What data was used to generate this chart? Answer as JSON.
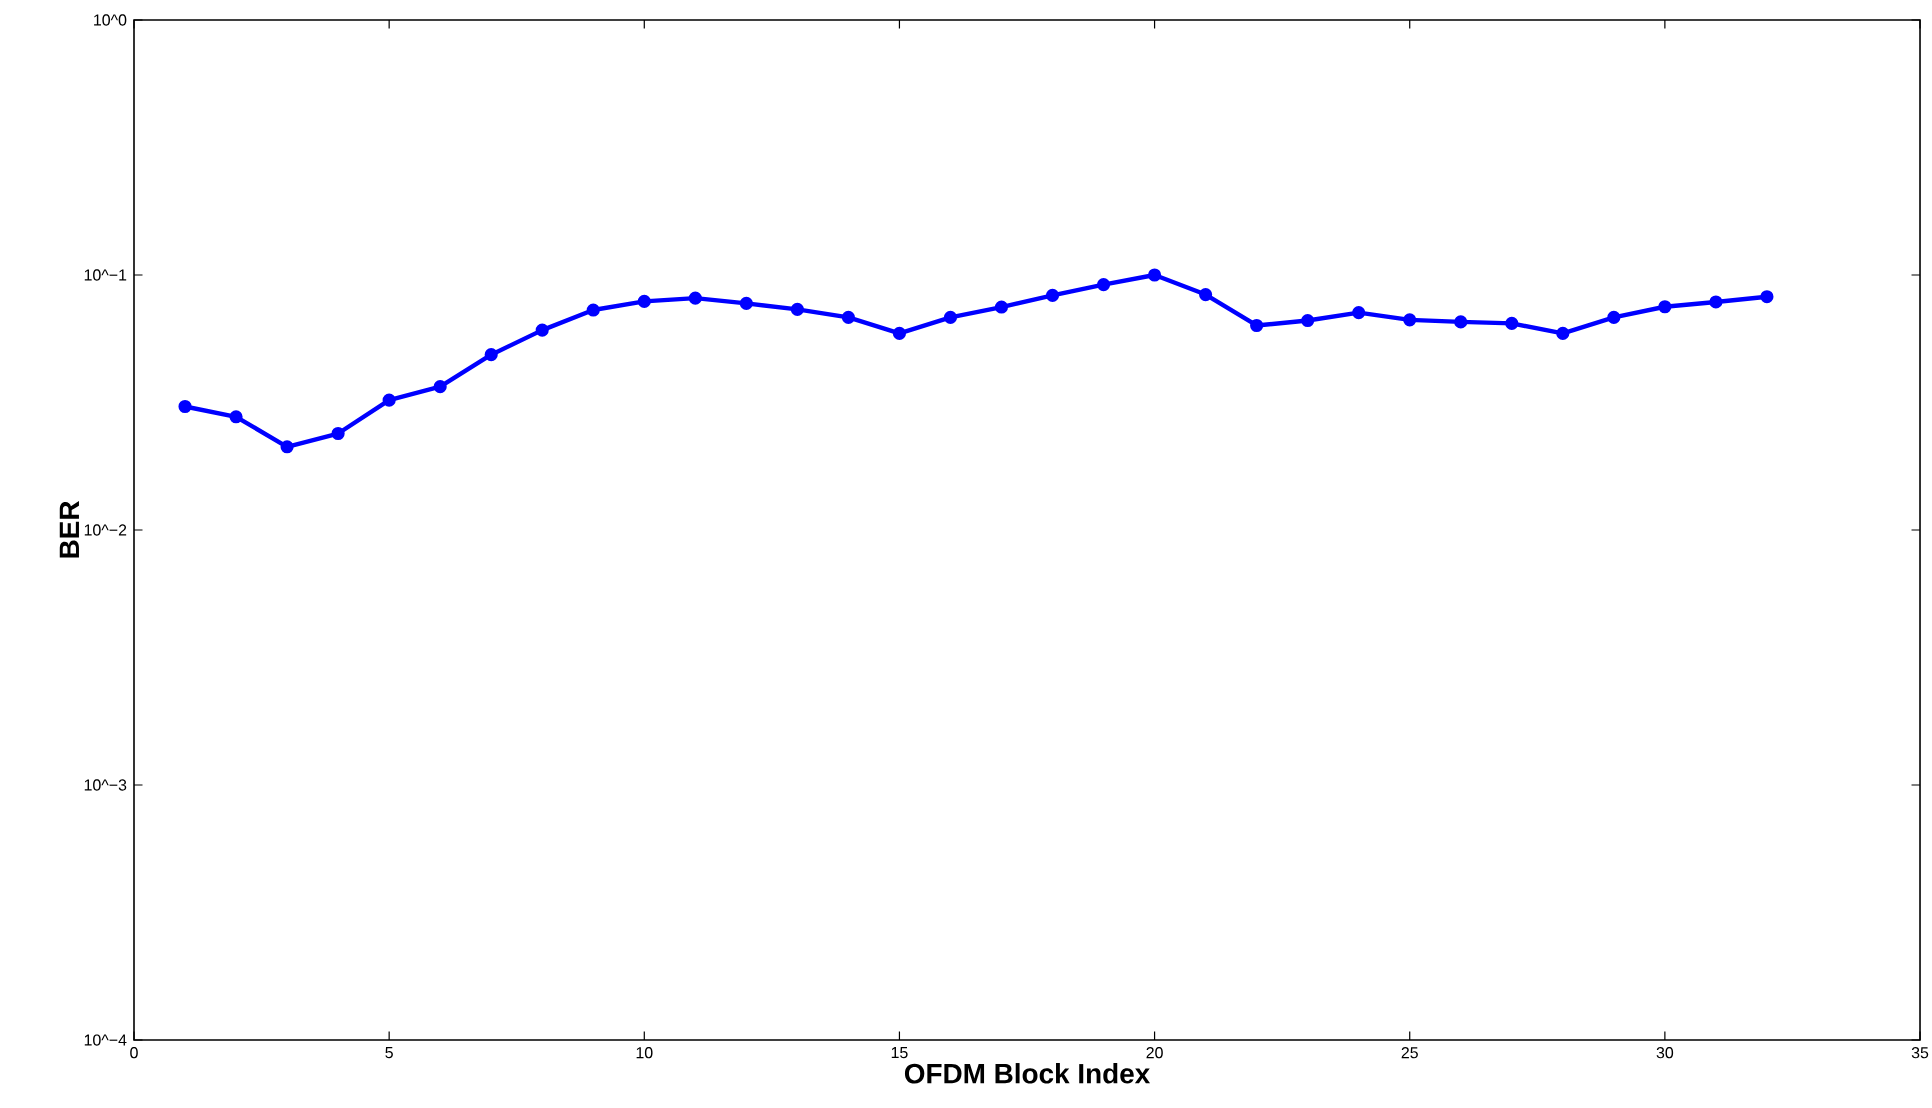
{
  "chart_data": {
    "type": "line",
    "xlabel": "OFDM Block Index",
    "ylabel": "BER",
    "x": [
      1,
      2,
      3,
      4,
      5,
      6,
      7,
      8,
      9,
      10,
      11,
      12,
      13,
      14,
      15,
      16,
      17,
      18,
      19,
      20,
      21,
      22,
      23,
      24,
      25,
      26,
      27,
      28,
      29,
      30,
      31,
      32
    ],
    "series": [
      {
        "color": "#0000ff",
        "values": [
          0.0305,
          0.0278,
          0.0212,
          0.0239,
          0.0323,
          0.0365,
          0.0487,
          0.0608,
          0.0729,
          0.0788,
          0.0812,
          0.0774,
          0.0733,
          0.0682,
          0.059,
          0.0682,
          0.0749,
          0.0832,
          0.0917,
          0.1,
          0.0838,
          0.0634,
          0.0663,
          0.0712,
          0.0667,
          0.0655,
          0.0646,
          0.059,
          0.0682,
          0.0751,
          0.0784,
          0.0822
        ]
      }
    ],
    "xlim": [
      0,
      35
    ],
    "xticks": [
      0,
      5,
      10,
      15,
      20,
      25,
      30,
      35
    ],
    "ylim": [
      0.0001,
      1
    ],
    "yticks": [
      {
        "value": 0.0001,
        "label": "10^−4"
      },
      {
        "value": 0.001,
        "label": "10^−3"
      },
      {
        "value": 0.01,
        "label": "10^−2"
      },
      {
        "value": 0.1,
        "label": "10^−1"
      },
      {
        "value": 1,
        "label": "10^0"
      }
    ],
    "log": "y",
    "grid": false,
    "marker": "circle",
    "line_style": "solid"
  }
}
